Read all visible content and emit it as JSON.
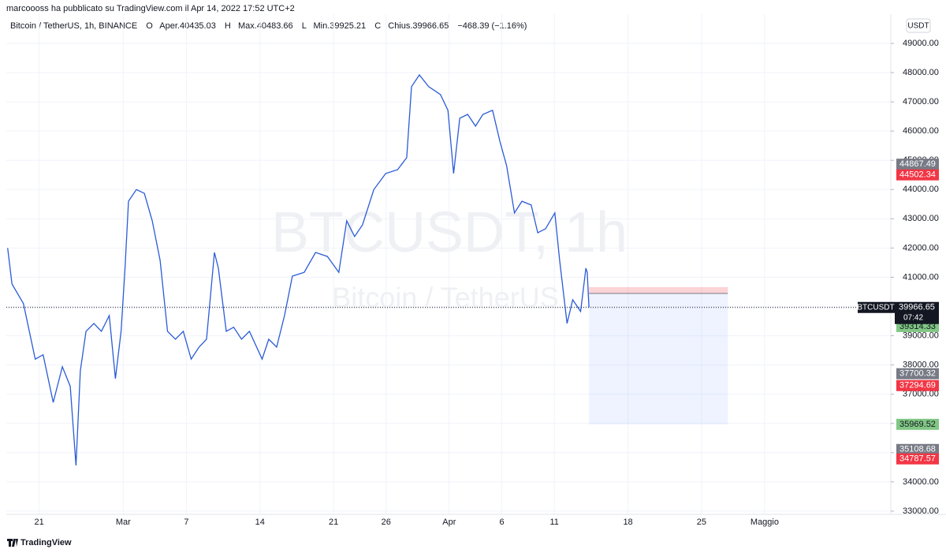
{
  "header": {
    "publisher": "marcoooss ha pubblicato su TradingView.com il Apr 14, 2022 17:52 UTC+2"
  },
  "footer": {
    "brand": "TradingView"
  },
  "chart_data": {
    "type": "line",
    "legend": {
      "title": "Bitcoin / TetherUS, 1h, BINANCE",
      "items": [
        "O",
        "Aper.40435.03",
        "H",
        "Max.40483.66",
        "L",
        "Min.39925.21",
        "C",
        "Chius.39966.65",
        "−468.39 (−1.16%)"
      ]
    },
    "currency": "USDT",
    "watermark": {
      "symbol": "BTCUSDT, 1h",
      "description": "Bitcoin / TetherUS"
    },
    "series": [
      {
        "name": "Bitcoin / TetherUS, 1h, BINANCE",
        "color": "#2a5bd7",
        "x": [
          "2022-02-18T00:00",
          "2022-02-18T10:00",
          "2022-02-19T12:00",
          "2022-02-20T15:00",
          "2022-02-21T09:00",
          "2022-02-22T08:00",
          "2022-02-23T05:00",
          "2022-02-23T23:00",
          "2022-02-24T12:00",
          "2022-02-24T22:00",
          "2022-02-25T11:00",
          "2022-02-26T05:00",
          "2022-02-26T22:00",
          "2022-02-27T16:00",
          "2022-02-28T06:00",
          "2022-02-28T19:00",
          "2022-03-01T04:00",
          "2022-03-01T12:00",
          "2022-03-02T06:00",
          "2022-03-03T00:00",
          "2022-03-03T18:00",
          "2022-03-04T12:00",
          "2022-03-05T05:00",
          "2022-03-05T23:00",
          "2022-03-06T17:00",
          "2022-03-07T11:00",
          "2022-03-08T05:00",
          "2022-03-08T22:00",
          "2022-03-09T16:00",
          "2022-03-10T01:00",
          "2022-03-10T19:00",
          "2022-03-11T12:00",
          "2022-03-12T06:00",
          "2022-03-13T00:00",
          "2022-03-14T05:00",
          "2022-03-14T20:00",
          "2022-03-15T14:00",
          "2022-03-16T08:00",
          "2022-03-17T02:00",
          "2022-03-18T05:00",
          "2022-03-19T07:00",
          "2022-03-20T10:00",
          "2022-03-21T12:00",
          "2022-03-22T06:00",
          "2022-03-23T00:00",
          "2022-03-23T18:00",
          "2022-03-24T20:00",
          "2022-03-25T23:00",
          "2022-03-27T02:00",
          "2022-03-27T23:00",
          "2022-03-28T10:00",
          "2022-03-29T04:00",
          "2022-03-30T01:00",
          "2022-03-31T04:00",
          "2022-03-31T21:00",
          "2022-04-01T10:00",
          "2022-04-02T00:00",
          "2022-04-02T18:00",
          "2022-04-03T12:00",
          "2022-04-04T05:00",
          "2022-04-05T03:00",
          "2022-04-05T20:00",
          "2022-04-06T11:00",
          "2022-04-07T05:00",
          "2022-04-07T22:00",
          "2022-04-08T19:00",
          "2022-04-09T10:00",
          "2022-04-10T04:00",
          "2022-04-11T01:00",
          "2022-04-11T12:00",
          "2022-04-12T05:00",
          "2022-04-12T18:00",
          "2022-04-13T12:00",
          "2022-04-14T00:00",
          "2022-04-14T03:00",
          "2022-04-14T07:00"
        ],
        "values": [
          42000,
          40770,
          40100,
          38200,
          38350,
          36720,
          37940,
          37270,
          34560,
          37800,
          39150,
          39420,
          39150,
          39690,
          37530,
          39150,
          41310,
          43600,
          44000,
          43870,
          42930,
          41580,
          39150,
          38880,
          39150,
          38200,
          38610,
          38880,
          41850,
          41310,
          39150,
          39290,
          38880,
          39150,
          38200,
          38880,
          38610,
          39690,
          41040,
          41170,
          41850,
          41710,
          41170,
          42930,
          42390,
          42790,
          44000,
          44550,
          44680,
          45090,
          47520,
          47920,
          47520,
          47250,
          46710,
          44550,
          46440,
          46570,
          46170,
          46570,
          46710,
          45630,
          44820,
          43200,
          43600,
          43470,
          42520,
          42660,
          43200,
          41580,
          39420,
          40230,
          39830,
          41310,
          41170,
          39966.65
        ]
      }
    ],
    "xlim": [
      "2022-02-17T21:00",
      "2022-05-13T00:00"
    ],
    "xticks": [
      {
        "value": "2022-02-21",
        "label": "21"
      },
      {
        "value": "2022-03-01",
        "label": "Mar"
      },
      {
        "value": "2022-03-07",
        "label": "7"
      },
      {
        "value": "2022-03-14",
        "label": "14"
      },
      {
        "value": "2022-03-21",
        "label": "21"
      },
      {
        "value": "2022-03-26",
        "label": "26"
      },
      {
        "value": "2022-04-01",
        "label": "Apr"
      },
      {
        "value": "2022-04-06",
        "label": "6"
      },
      {
        "value": "2022-04-11",
        "label": "11"
      },
      {
        "value": "2022-04-18",
        "label": "18"
      },
      {
        "value": "2022-04-25",
        "label": "25"
      },
      {
        "value": "2022-05-01",
        "label": "Maggio"
      }
    ],
    "ylim": [
      32890,
      49998
    ],
    "yticks": [
      {
        "value": 33000,
        "label": "33000.00"
      },
      {
        "value": 34000,
        "label": "34000.00"
      },
      {
        "value": 35000,
        "label": "35000.00"
      },
      {
        "value": 36000,
        "label": "36000.00"
      },
      {
        "value": 37000,
        "label": "37000.00"
      },
      {
        "value": 38000,
        "label": "38000.00"
      },
      {
        "value": 39000,
        "label": "39000.00"
      },
      {
        "value": 40000,
        "label": "40000.00"
      },
      {
        "value": 41000,
        "label": "41000.00"
      },
      {
        "value": 42000,
        "label": "42000.00"
      },
      {
        "value": 43000,
        "label": "43000.00"
      },
      {
        "value": 44000,
        "label": "44000.00"
      },
      {
        "value": 45000,
        "label": "45000.00"
      },
      {
        "value": 46000,
        "label": "46000.00"
      },
      {
        "value": 47000,
        "label": "47000.00"
      },
      {
        "value": 48000,
        "label": "48000.00"
      },
      {
        "value": 49000,
        "label": "49000.00"
      }
    ],
    "grid": true,
    "last_price": {
      "symbol": "BTCUSDT",
      "value": 39966.65,
      "countdown": "07:42"
    },
    "price_labels": [
      {
        "value": 44867.49,
        "color": "#787b86"
      },
      {
        "value": 44502.34,
        "color": "#f23645"
      },
      {
        "value": 39314.33,
        "color": "#81c784"
      },
      {
        "value": 37700.32,
        "color": "#787b86"
      },
      {
        "value": 37294.69,
        "color": "#f23645"
      },
      {
        "value": 35969.52,
        "color": "#81c784"
      },
      {
        "value": 35108.68,
        "color": "#787b86"
      },
      {
        "value": 34787.57,
        "color": "#f23645"
      }
    ],
    "position": {
      "start": "2022-04-14T07:00",
      "end": "2022-04-27T12:00",
      "entry": 40446,
      "stop": 40662,
      "target": 35969.52
    }
  }
}
